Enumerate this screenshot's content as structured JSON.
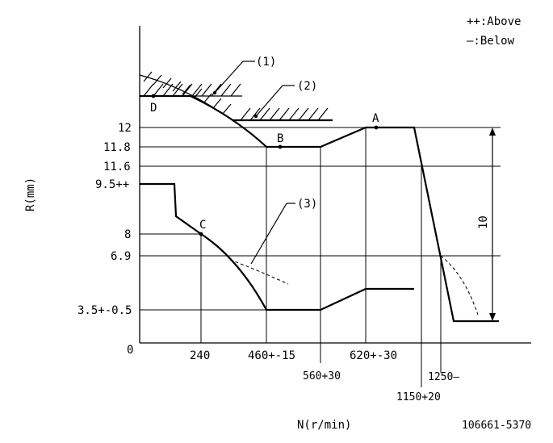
{
  "legend": {
    "above": "++:Above",
    "below": "—:Below"
  },
  "axes": {
    "y_label": "R(mm)",
    "x_label": "N(r/min)",
    "origin": "0"
  },
  "y_ticks": {
    "t12": "12",
    "t11_8": "11.8",
    "t11_6": "11.6",
    "t9_5": "9.5++",
    "t8": "8",
    "t6_9": "6.9",
    "t3_5": "3.5+-0.5"
  },
  "x_ticks": {
    "t240": "240",
    "t460": "460+-15",
    "t560": "560+30",
    "t620": "620+-30",
    "t1150": "1150+20",
    "t1250": "1250—"
  },
  "points": {
    "A": "A",
    "B": "B",
    "C": "C",
    "D": "D"
  },
  "callouts": {
    "c1": "(1)",
    "c2": "(2)",
    "c3": "(3)"
  },
  "dimension": "10",
  "drawing_number": "106661-5370"
}
